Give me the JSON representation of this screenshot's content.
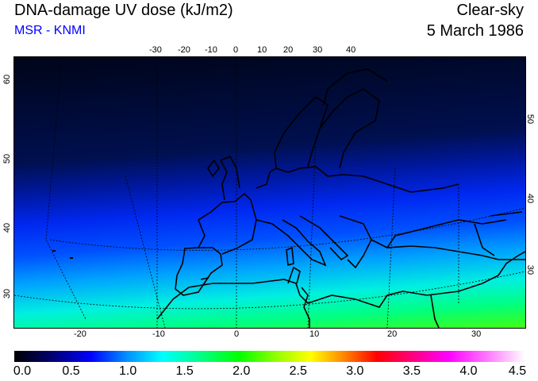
{
  "header": {
    "title": "DNA-damage UV dose (kJ/m2)",
    "subtitle": "MSR - KNMI",
    "condition": "Clear-sky",
    "date": "5 March 1986"
  },
  "axes": {
    "top": [
      "-30",
      "-20",
      "-10",
      "0",
      "10",
      "20",
      "30",
      "40"
    ],
    "bottom": [
      "-20",
      "-10",
      "0",
      "10",
      "20",
      "30"
    ],
    "left": [
      "60",
      "50",
      "40",
      "30"
    ],
    "right": [
      "50",
      "40",
      "30"
    ]
  },
  "colorbar": {
    "labels": [
      "0.0",
      "0.5",
      "1.0",
      "1.5",
      "2.0",
      "2.5",
      "3.0",
      "3.5",
      "4.0",
      "4.5"
    ],
    "min": 0,
    "max": 4.5,
    "colors": [
      "#000000",
      "#0000ff",
      "#00ffff",
      "#00ff00",
      "#ffff00",
      "#ff0000",
      "#ff00ff",
      "#ffffff"
    ]
  }
}
